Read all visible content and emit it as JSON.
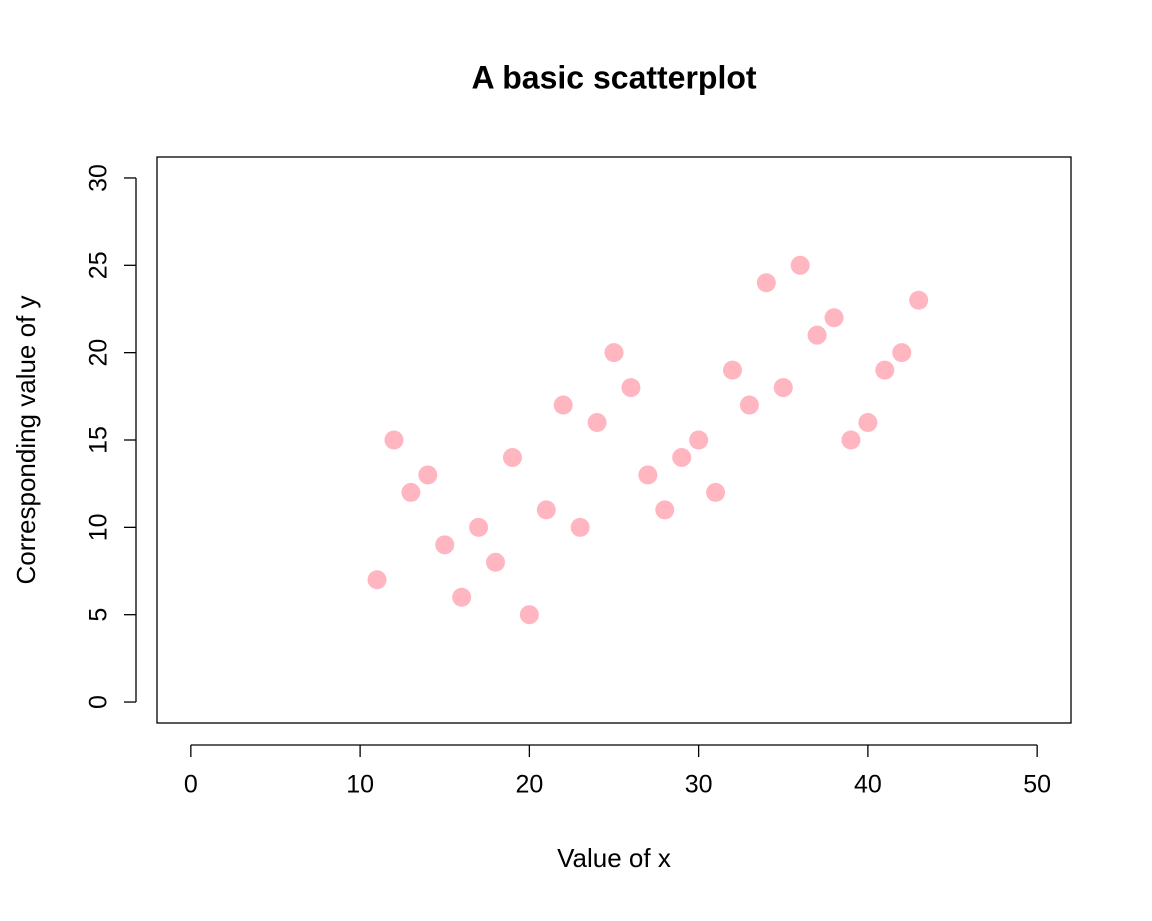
{
  "chart_data": {
    "type": "scatter",
    "title": "A basic scatterplot",
    "x_label": "Value of x",
    "y_label": "Corresponding value of y",
    "x": [
      11,
      12,
      13,
      14,
      15,
      16,
      17,
      18,
      19,
      20,
      21,
      22,
      23,
      24,
      25,
      26,
      27,
      28,
      29,
      30,
      31,
      32,
      33,
      34,
      35,
      36,
      37,
      38,
      39,
      40,
      41,
      42,
      43
    ],
    "values": [
      7,
      15,
      12,
      13,
      9,
      6,
      10,
      8,
      14,
      5,
      11,
      17,
      10,
      16,
      20,
      18,
      13,
      11,
      14,
      15,
      12,
      19,
      17,
      24,
      18,
      25,
      21,
      22,
      15,
      16,
      19,
      20,
      23
    ],
    "color": "#ffb6c1",
    "xlim": [
      -2,
      52
    ],
    "xticks": [
      0,
      10,
      20,
      30,
      40,
      50
    ],
    "ylim": [
      -1.2,
      31.2
    ],
    "yticks": [
      0,
      5,
      10,
      15,
      20,
      25,
      30
    ]
  }
}
